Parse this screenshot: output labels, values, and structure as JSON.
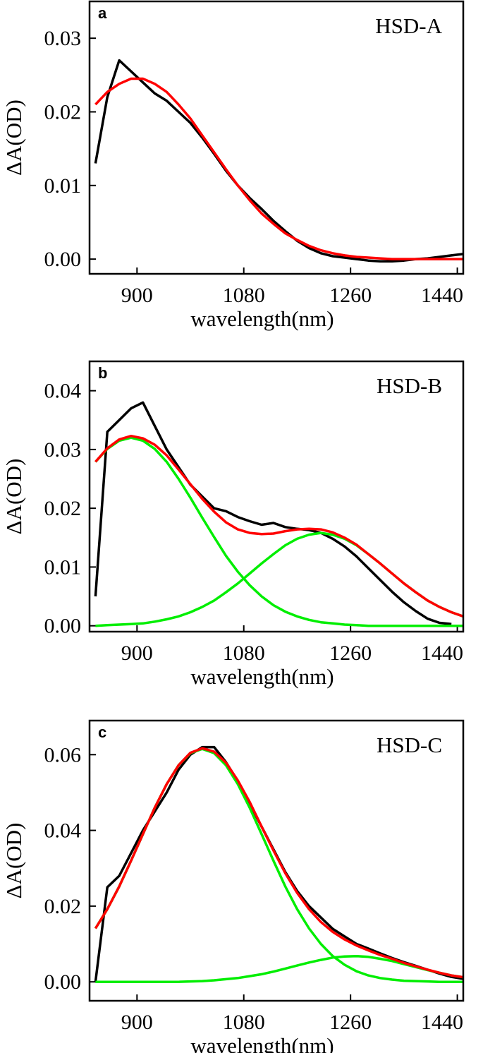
{
  "chart_data": [
    {
      "type": "line",
      "panel": "a",
      "annotation": "HSD-A",
      "y_label": "ΔA(OD)",
      "x_label": "wavelength(nm)",
      "xlim": [
        820,
        1450
      ],
      "xticks": [
        900,
        1080,
        1260,
        1440
      ],
      "ylim": [
        -0.002,
        0.035
      ],
      "yticks": [
        {
          "value": 0,
          "label": "0.00"
        },
        {
          "value": 0.01,
          "label": "0.01"
        },
        {
          "value": 0.02,
          "label": "0.02"
        },
        {
          "value": 0.03,
          "label": "0.03"
        }
      ],
      "x": [
        830,
        850,
        870,
        890,
        910,
        930,
        950,
        970,
        990,
        1010,
        1030,
        1050,
        1070,
        1090,
        1110,
        1130,
        1150,
        1170,
        1190,
        1210,
        1230,
        1250,
        1270,
        1290,
        1310,
        1330,
        1350,
        1370,
        1390,
        1410,
        1430,
        1450
      ],
      "series": [
        {
          "color": "#000000",
          "values": [
            0.013,
            0.022,
            0.027,
            0.0255,
            0.024,
            0.0225,
            0.0215,
            0.02,
            0.0185,
            0.0165,
            0.0143,
            0.012,
            0.01,
            0.0083,
            0.0068,
            0.0052,
            0.0038,
            0.0025,
            0.0015,
            0.0008,
            0.0004,
            0.0002,
            0.0,
            -0.0002,
            -0.0003,
            -0.0003,
            -0.0002,
            0.0,
            0.0001,
            0.0003,
            0.0005,
            0.0007
          ]
        },
        {
          "color": "#ff0000",
          "values": [
            0.021,
            0.0227,
            0.0238,
            0.0245,
            0.0245,
            0.0238,
            0.0227,
            0.021,
            0.0191,
            0.0168,
            0.0145,
            0.0122,
            0.01,
            0.008,
            0.0062,
            0.0048,
            0.0035,
            0.0026,
            0.0018,
            0.0012,
            0.0008,
            0.0005,
            0.0003,
            0.0002,
            0.0001,
            0.0,
            0.0,
            0.0,
            0.0,
            0.0,
            0.0,
            0.0
          ]
        }
      ]
    },
    {
      "type": "line",
      "panel": "b",
      "annotation": "HSD-B",
      "y_label": "ΔA(OD)",
      "x_label": "wavelength(nm)",
      "xlim": [
        820,
        1450
      ],
      "xticks": [
        900,
        1080,
        1260,
        1440
      ],
      "ylim": [
        -0.001,
        0.045
      ],
      "yticks": [
        {
          "value": 0,
          "label": "0.00"
        },
        {
          "value": 0.01,
          "label": "0.01"
        },
        {
          "value": 0.02,
          "label": "0.02"
        },
        {
          "value": 0.03,
          "label": "0.03"
        },
        {
          "value": 0.04,
          "label": "0.04"
        }
      ],
      "x": [
        830,
        850,
        870,
        890,
        910,
        930,
        950,
        970,
        990,
        1010,
        1030,
        1050,
        1070,
        1090,
        1110,
        1130,
        1150,
        1170,
        1190,
        1210,
        1230,
        1250,
        1270,
        1290,
        1310,
        1330,
        1350,
        1370,
        1390,
        1410,
        1430,
        1450
      ],
      "series": [
        {
          "color": "#000000",
          "values": [
            0.005,
            0.033,
            0.035,
            0.037,
            0.038,
            0.034,
            0.03,
            0.027,
            0.024,
            0.022,
            0.02,
            0.0195,
            0.0185,
            0.0178,
            0.0172,
            0.0175,
            0.0168,
            0.0165,
            0.0163,
            0.0158,
            0.0148,
            0.0135,
            0.0118,
            0.0098,
            0.0078,
            0.0058,
            0.004,
            0.0025,
            0.0012,
            0.0005,
            0.0003,
            null
          ]
        },
        {
          "color": "#00ee00",
          "values": [
            0.0279,
            0.0301,
            0.0315,
            0.032,
            0.0315,
            0.0301,
            0.0279,
            0.025,
            0.0218,
            0.0184,
            0.0151,
            0.0119,
            0.0092,
            0.0069,
            0.005,
            0.0035,
            0.0024,
            0.0016,
            0.001,
            0.0006,
            0.0004,
            0.0002,
            0.0001,
            0.0,
            0.0,
            0.0,
            0.0,
            0.0,
            0.0,
            0.0,
            0.0,
            0.0
          ]
        },
        {
          "color": "#00ee00",
          "values": [
            0.0,
            0.0001,
            0.0002,
            0.0003,
            0.0004,
            0.0007,
            0.0011,
            0.0016,
            0.0023,
            0.0032,
            0.0043,
            0.0057,
            0.0072,
            0.0089,
            0.0106,
            0.0122,
            0.0137,
            0.0148,
            0.0155,
            0.0158,
            0.0155,
            0.0148,
            0.0137,
            0.0122,
            0.0106,
            0.0089,
            0.0072,
            0.0057,
            0.0043,
            0.0032,
            0.0023,
            0.0016
          ]
        },
        {
          "color": "#ff0000",
          "values": [
            0.0279,
            0.0302,
            0.0317,
            0.0323,
            0.0319,
            0.0308,
            0.029,
            0.0266,
            0.0241,
            0.0216,
            0.0194,
            0.0176,
            0.0164,
            0.0158,
            0.0156,
            0.0157,
            0.0161,
            0.0164,
            0.0165,
            0.0164,
            0.0159,
            0.015,
            0.0138,
            0.0122,
            0.0106,
            0.0089,
            0.0072,
            0.0057,
            0.0043,
            0.0032,
            0.0023,
            0.0016
          ]
        }
      ]
    },
    {
      "type": "line",
      "panel": "c",
      "annotation": "HSD-C",
      "y_label": "ΔA(OD)",
      "x_label": "wavelength(nm)",
      "xlim": [
        820,
        1450
      ],
      "xticks": [
        900,
        1080,
        1260,
        1440
      ],
      "ylim": [
        -0.005,
        0.069
      ],
      "yticks": [
        {
          "value": 0,
          "label": "0.00"
        },
        {
          "value": 0.02,
          "label": "0.02"
        },
        {
          "value": 0.04,
          "label": "0.04"
        },
        {
          "value": 0.06,
          "label": "0.06"
        }
      ],
      "x": [
        830,
        850,
        870,
        890,
        910,
        930,
        950,
        970,
        990,
        1010,
        1030,
        1050,
        1070,
        1090,
        1110,
        1130,
        1150,
        1170,
        1190,
        1210,
        1230,
        1250,
        1270,
        1290,
        1310,
        1330,
        1350,
        1370,
        1390,
        1410,
        1430,
        1450
      ],
      "series": [
        {
          "color": "#000000",
          "values": [
            0.0,
            0.025,
            0.028,
            0.034,
            0.04,
            0.045,
            0.05,
            0.056,
            0.06,
            0.062,
            0.062,
            0.058,
            0.053,
            0.047,
            0.041,
            0.035,
            0.029,
            0.024,
            0.02,
            0.017,
            0.014,
            0.012,
            0.01,
            0.0088,
            0.0075,
            0.0063,
            0.0052,
            0.0042,
            0.0032,
            0.0022,
            0.0013,
            0.0008
          ]
        },
        {
          "color": "#00ee00",
          "values": [
            0.0141,
            0.0192,
            0.0252,
            0.032,
            0.039,
            0.046,
            0.0522,
            0.0572,
            0.0604,
            0.0615,
            0.0604,
            0.0572,
            0.0522,
            0.046,
            0.039,
            0.032,
            0.0252,
            0.0192,
            0.0141,
            0.01,
            0.0068,
            0.0045,
            0.0028,
            0.0017,
            0.001,
            0.0006,
            0.0003,
            0.0002,
            0.0001,
            0.0,
            0.0,
            0.0
          ]
        },
        {
          "color": "#00ee00",
          "values": [
            0.0,
            0.0,
            0.0,
            0.0,
            0.0,
            0.0,
            0.0,
            0.0,
            0.0001,
            0.0002,
            0.0004,
            0.0007,
            0.001,
            0.0015,
            0.002,
            0.0027,
            0.0035,
            0.0043,
            0.0051,
            0.0058,
            0.0064,
            0.0067,
            0.0068,
            0.0066,
            0.0061,
            0.0055,
            0.0047,
            0.0039,
            0.0031,
            0.0024,
            0.0017,
            0.0012
          ]
        },
        {
          "color": "#ff0000",
          "values": [
            0.0141,
            0.0192,
            0.0252,
            0.032,
            0.039,
            0.046,
            0.0522,
            0.0572,
            0.0605,
            0.0617,
            0.0608,
            0.0579,
            0.0532,
            0.0475,
            0.041,
            0.0347,
            0.0287,
            0.0235,
            0.0192,
            0.0158,
            0.0132,
            0.0112,
            0.0096,
            0.0083,
            0.0071,
            0.0061,
            0.005,
            0.0041,
            0.0032,
            0.0024,
            0.0017,
            0.0012
          ]
        }
      ]
    }
  ]
}
